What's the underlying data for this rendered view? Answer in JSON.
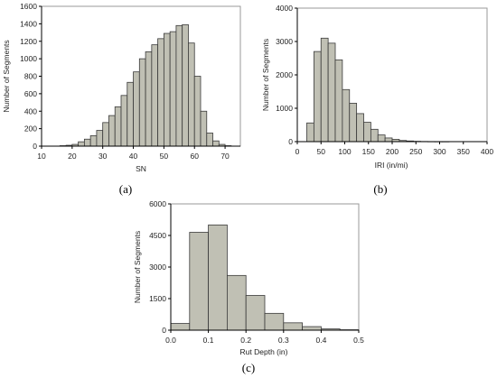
{
  "colors": {
    "bar_fill": "#c0c0b4",
    "bar_stroke": "#3a3a3a",
    "frame": "#999999"
  },
  "chart_data": [
    {
      "type": "bar",
      "caption": "(a)",
      "xlabel": "SN",
      "ylabel": "Number of Segments",
      "xlim": [
        10,
        75
      ],
      "ylim": [
        0,
        1600
      ],
      "xticks": [
        10,
        20,
        30,
        40,
        50,
        60,
        70
      ],
      "yticks": [
        0,
        200,
        400,
        600,
        800,
        1000,
        1200,
        1400,
        1600
      ],
      "bin_width": 2,
      "bin_starts": [
        16,
        18,
        20,
        22,
        24,
        26,
        28,
        30,
        32,
        34,
        36,
        38,
        40,
        42,
        44,
        46,
        48,
        50,
        52,
        54,
        56,
        58,
        60,
        62,
        64,
        66,
        68,
        70
      ],
      "values": [
        5,
        10,
        20,
        50,
        80,
        120,
        180,
        270,
        350,
        450,
        580,
        730,
        850,
        1000,
        1080,
        1160,
        1230,
        1290,
        1310,
        1380,
        1390,
        1180,
        800,
        400,
        150,
        60,
        20,
        5
      ],
      "grid": false
    },
    {
      "type": "bar",
      "caption": "(b)",
      "xlabel": "IRI (in/mi)",
      "ylabel": "Number of Segments",
      "xlim": [
        0,
        400
      ],
      "ylim": [
        0,
        4000
      ],
      "xticks": [
        0,
        50,
        100,
        150,
        200,
        250,
        300,
        350,
        400
      ],
      "yticks": [
        0,
        1000,
        2000,
        3000,
        4000
      ],
      "bin_width": 15,
      "bin_starts": [
        20,
        35,
        50,
        65,
        80,
        95,
        110,
        125,
        140,
        155,
        170,
        185,
        200,
        215,
        230,
        245,
        260,
        275,
        290,
        305
      ],
      "values": [
        560,
        2700,
        3100,
        2950,
        2450,
        1560,
        1150,
        840,
        580,
        370,
        200,
        110,
        70,
        35,
        20,
        10,
        5,
        3,
        2,
        1
      ],
      "grid": false
    },
    {
      "type": "bar",
      "caption": "(c)",
      "xlabel": "Rut Depth (in)",
      "ylabel": "Number of Segments",
      "xlim": [
        0.0,
        0.5
      ],
      "ylim": [
        0,
        6000
      ],
      "xticks": [
        "0.0",
        "0.1",
        "0.2",
        "0.3",
        "0.4",
        "0.5"
      ],
      "xtick_values": [
        0.0,
        0.1,
        0.2,
        0.3,
        0.4,
        0.5
      ],
      "yticks": [
        0,
        1500,
        3000,
        4500,
        6000
      ],
      "bin_width": 0.05,
      "bin_starts": [
        0.0,
        0.05,
        0.1,
        0.15,
        0.2,
        0.25,
        0.3,
        0.35,
        0.4,
        0.45
      ],
      "values": [
        320,
        4650,
        5000,
        2600,
        1650,
        800,
        350,
        170,
        60,
        20
      ],
      "grid": false
    }
  ]
}
